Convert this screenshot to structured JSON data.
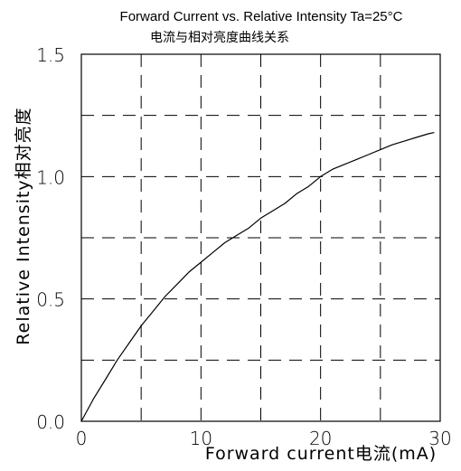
{
  "chart_data": {
    "type": "line",
    "title": "Forward Current vs. Relative Intensity  Ta=25°C",
    "subtitle": "电流与相对亮度曲线关系",
    "xlabel": "Forward current电流(mA)",
    "ylabel": "Relative Intensity相对亮度",
    "xlim": [
      0,
      30
    ],
    "ylim": [
      0,
      1.5
    ],
    "x_ticks": [
      0,
      10,
      20,
      30
    ],
    "x_tick_labels": [
      "0",
      "10",
      "20",
      "30"
    ],
    "y_ticks": [
      0.0,
      0.5,
      1.0,
      1.5
    ],
    "y_tick_labels": [
      "0.0",
      "0.5",
      "1.0",
      "1.5"
    ],
    "grid": true,
    "grid_style": "dashed",
    "x_grid": [
      5,
      10,
      15,
      20,
      25
    ],
    "y_grid": [
      0.25,
      0.5,
      0.75,
      1.0,
      1.25
    ],
    "series": [
      {
        "x": [
          0,
          1,
          2,
          3,
          4,
          5,
          6,
          7,
          8,
          9,
          10,
          11,
          12,
          13,
          14,
          15,
          16,
          17,
          18,
          19,
          20,
          21,
          22,
          23,
          24,
          25,
          26,
          27,
          28,
          29,
          29.5
        ],
        "y": [
          0.0,
          0.09,
          0.17,
          0.25,
          0.32,
          0.39,
          0.45,
          0.51,
          0.56,
          0.61,
          0.65,
          0.69,
          0.73,
          0.76,
          0.79,
          0.83,
          0.86,
          0.89,
          0.93,
          0.96,
          1.0,
          1.03,
          1.05,
          1.07,
          1.09,
          1.11,
          1.13,
          1.145,
          1.16,
          1.175,
          1.18
        ]
      }
    ]
  }
}
